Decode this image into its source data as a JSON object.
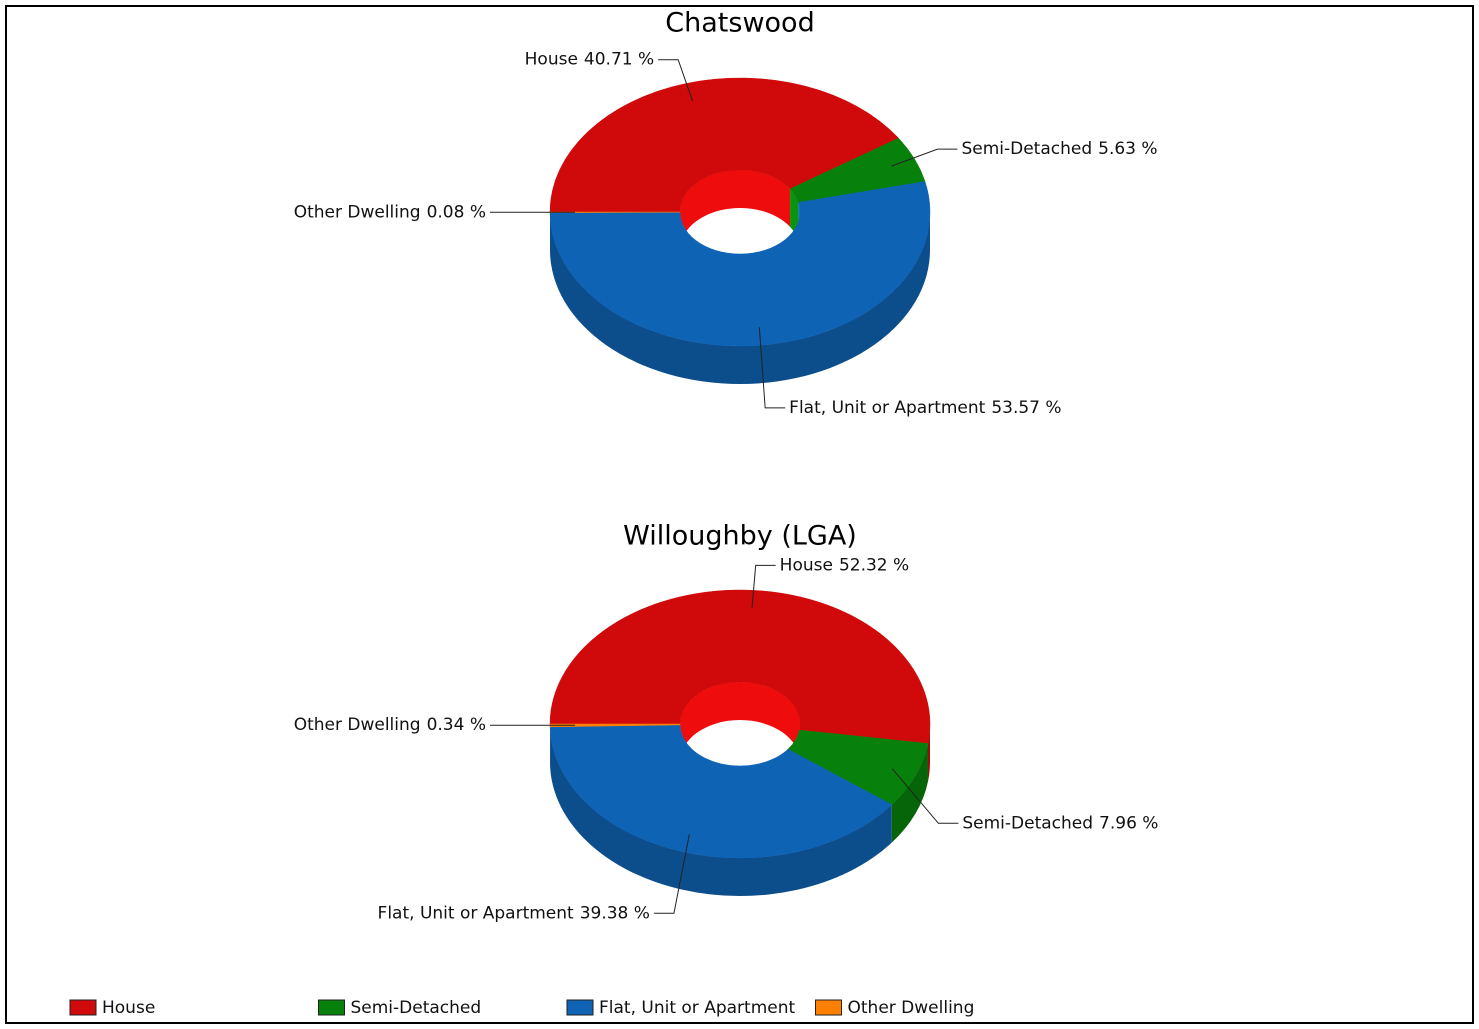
{
  "chart_data": [
    {
      "type": "donut",
      "title": "Chatswood",
      "categories": [
        "House",
        "Semi-Detached",
        "Flat, Unit or Apartment",
        "Other Dwelling"
      ],
      "values": [
        40.71,
        5.63,
        53.57,
        0.08
      ],
      "value_labels": [
        "40.71 %",
        "5.63 %",
        "53.57 %",
        "0.08 %"
      ],
      "colors": [
        "#d00a0a",
        "#08800c",
        "#0f63b4",
        "#ff8000"
      ]
    },
    {
      "type": "donut",
      "title": "Willoughby (LGA)",
      "categories": [
        "House",
        "Semi-Detached",
        "Flat, Unit or Apartment",
        "Other Dwelling"
      ],
      "values": [
        52.32,
        7.96,
        39.38,
        0.34
      ],
      "value_labels": [
        "52.32 %",
        "7.96 %",
        "39.38 %",
        "0.34 %"
      ],
      "colors": [
        "#d00a0a",
        "#08800c",
        "#0f63b4",
        "#ff8000"
      ],
      "legend": "bottom"
    }
  ]
}
